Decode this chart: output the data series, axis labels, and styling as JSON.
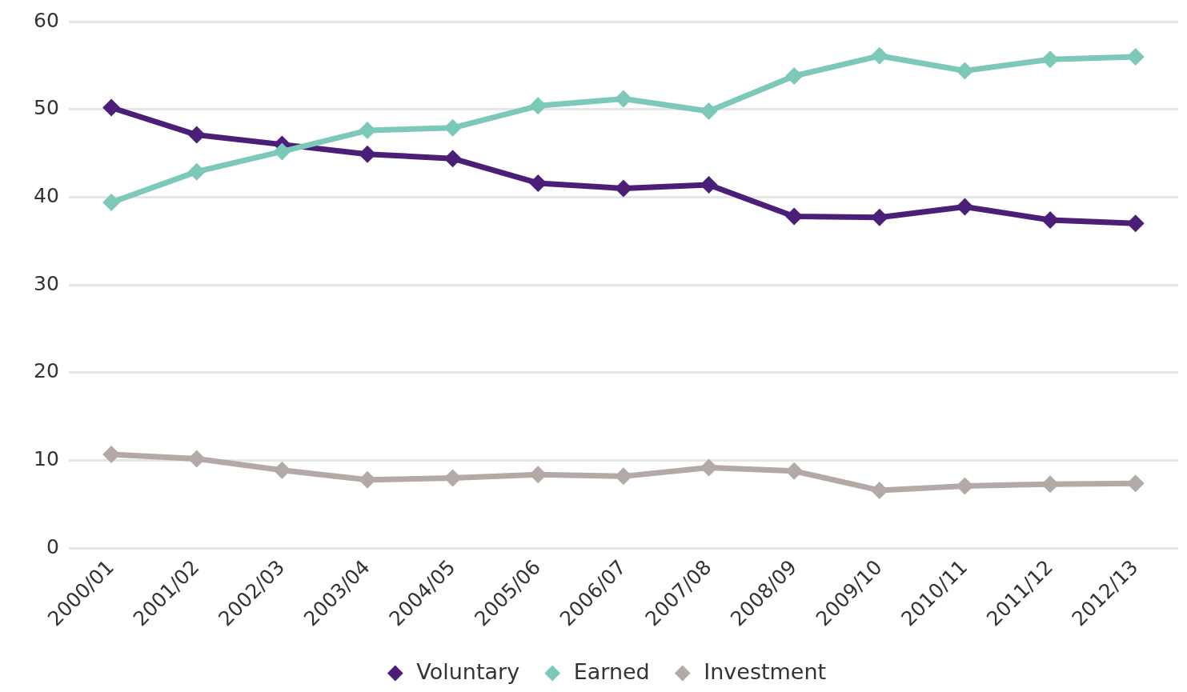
{
  "chart_data": {
    "type": "line",
    "categories": [
      "2000/01",
      "2001/02",
      "2002/03",
      "2003/04",
      "2004/05",
      "2005/06",
      "2006/07",
      "2007/08",
      "2008/09",
      "2009/10",
      "2010/11",
      "2011/12",
      "2012/13"
    ],
    "series": [
      {
        "name": "Voluntary",
        "color": "#4b1f78",
        "values": [
          50.2,
          47.1,
          46.0,
          44.9,
          44.4,
          41.6,
          41.0,
          41.4,
          37.8,
          37.7,
          38.9,
          37.4,
          37.0
        ]
      },
      {
        "name": "Earned",
        "color": "#7cc8b9",
        "values": [
          39.4,
          42.9,
          45.2,
          47.6,
          47.9,
          50.4,
          51.2,
          49.8,
          53.8,
          56.1,
          54.4,
          55.7,
          56.0
        ]
      },
      {
        "name": "Investment",
        "color": "#b3a9a7",
        "values": [
          10.7,
          10.2,
          8.9,
          7.8,
          8.0,
          8.4,
          8.2,
          9.2,
          8.8,
          6.6,
          7.1,
          7.3,
          7.4
        ]
      }
    ],
    "ylim": [
      0,
      60
    ],
    "yticks": [
      0,
      10,
      20,
      30,
      40,
      50,
      60
    ],
    "grid": "y",
    "legend": "bottom",
    "marker": "diamond"
  }
}
